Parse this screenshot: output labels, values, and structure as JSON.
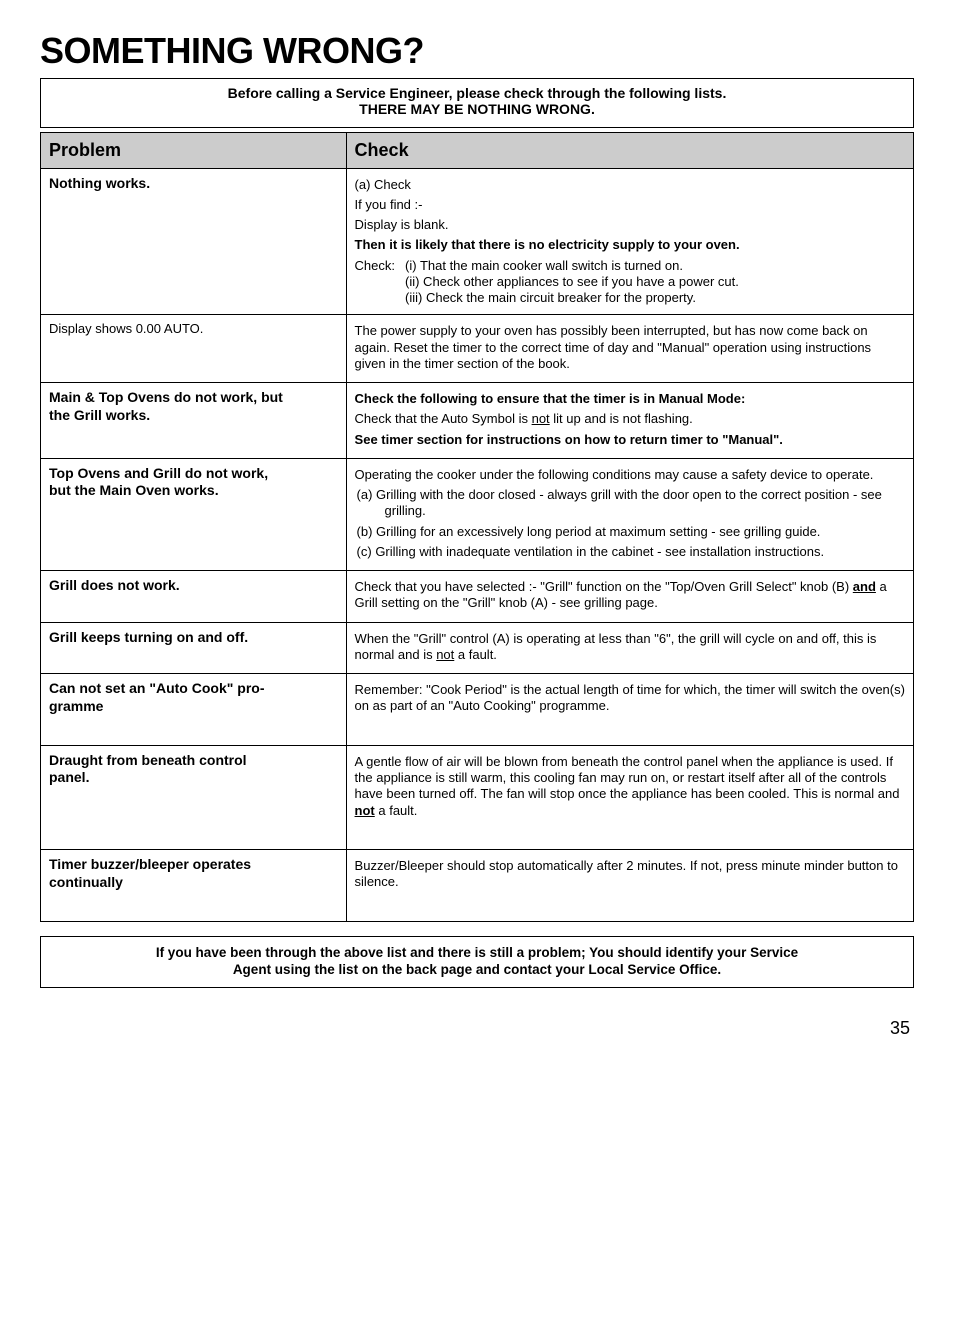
{
  "page": {
    "title": "SOMETHING WRONG?",
    "number": "35"
  },
  "intro": {
    "line1": "Before calling a Service Engineer, please check through the following lists.",
    "line2": "THERE MAY BE NOTHING WRONG."
  },
  "headers": {
    "problem": "Problem",
    "check": "Check"
  },
  "rows": {
    "r1": {
      "problem": "Nothing works.",
      "a": "(a) Check",
      "b": "If you find :-",
      "c": "Display is blank.",
      "d": "Then it is likely that there is no electricity supply to your oven.",
      "e_prefix": "Check:",
      "e_i": "(i)   That the main cooker wall switch is turned on.",
      "e_ii": "(ii)  Check other appliances to see if you have a power cut.",
      "e_iii": "(iii) Check the main circuit breaker for the property."
    },
    "r2": {
      "problem": "Display shows 0.00 AUTO.",
      "text": "The power supply to your oven has possibly been interrupted, but has now come back on again. Reset the timer to the correct time of day and \"Manual\" operation using instructions given in the timer section of the book."
    },
    "r3": {
      "problem1": "Main & Top Ovens do not work, but",
      "problem2": "the Grill works.",
      "a": "Check the following to ensure that the timer is in Manual Mode:",
      "b_pre": "Check that the Auto Symbol is ",
      "b_u": "not",
      "b_post": " lit up and is not flashing.",
      "c": "See timer section for instructions on how to return timer to \"Manual\"."
    },
    "r4": {
      "problem1": "Top Ovens and Grill do not work,",
      "problem2": "but the Main Oven works.",
      "intro": "Operating the cooker under the following conditions may cause a safety device to operate.",
      "a": "(a)  Grilling with the door closed - always grill with the door open to the correct position - see grilling.",
      "b": "(b)  Grilling for an excessively long period at maximum setting - see grilling guide.",
      "c": "(c)  Grilling with inadequate ventilation in the cabinet - see installation instructions."
    },
    "r5": {
      "problem": "Grill does not work.",
      "pre": "Check that you have selected :- \"Grill\" function on the \"Top/Oven Grill Select\" knob (B) ",
      "and": "and",
      "post": " a Grill setting on the \"Grill\" knob (A) - see grilling page."
    },
    "r6": {
      "problem": "Grill keeps turning on and off.",
      "pre": "When the \"Grill\" control (A) is operating at less than \"6\", the grill will cycle on and off, this is normal and is ",
      "u": "not",
      "post": " a fault."
    },
    "r7": {
      "problem1": "Can not set an \"Auto Cook\" pro-",
      "problem2": "gramme",
      "text": "Remember: \"Cook Period\" is the actual length of time for which, the timer will switch the oven(s) on as part of an \"Auto Cooking\" programme."
    },
    "r8": {
      "problem1": "Draught from beneath control",
      "problem2": "panel.",
      "pre": "A gentle flow of air will be blown from beneath the control panel when the appliance is used. If the appliance is still warm, this cooling fan may run on, or restart itself after all of the controls have been turned off. The fan will stop once the appliance has been cooled. This is normal and ",
      "u": "not",
      "post": " a fault."
    },
    "r9": {
      "problem1": "Timer buzzer/bleeper operates",
      "problem2": "continually",
      "text": "Buzzer/Bleeper should stop automatically after 2 minutes. If not, press minute minder button to silence."
    }
  },
  "footer": {
    "line1": "If you have been through the above list and there is still a problem; You should identify your Service",
    "line2": "Agent using the list on the back page and contact your Local Service Office."
  }
}
